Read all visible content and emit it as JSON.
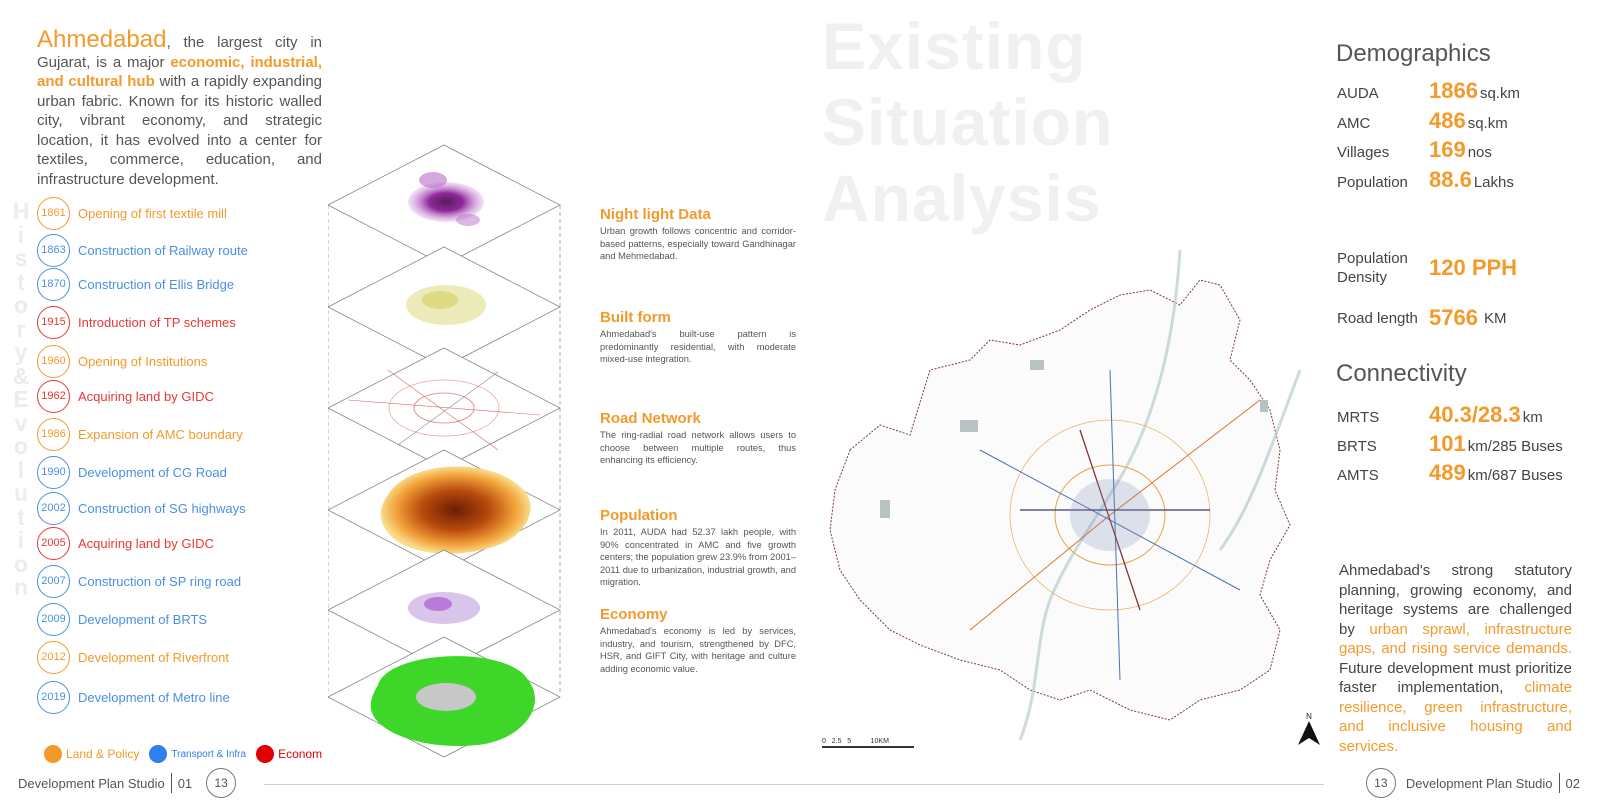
{
  "intro": {
    "city": "Ahmedabad",
    "part1": ", the largest city in Gujarat, is a major ",
    "highlight": "economic, industrial, and cultural hub",
    "part2": " with a rapidly expanding urban fabric. Known for its historic walled city, vibrant economy, and strategic location, it has evolved into a center for textiles, commerce, education, and infrastructure development."
  },
  "side_word": [
    "H",
    "i",
    "s",
    "t",
    "o",
    "r",
    "y",
    "&",
    "E",
    "v",
    "o",
    "l",
    "u",
    "t",
    "i",
    "o",
    "n"
  ],
  "timeline": [
    {
      "year": "1861",
      "text": "Opening of first textile mill",
      "cat": "orange"
    },
    {
      "year": "1863",
      "text": "Construction of Railway route",
      "cat": "blue"
    },
    {
      "year": "1870",
      "text": "Construction of Ellis Bridge",
      "cat": "blue"
    },
    {
      "year": "1915",
      "text": "Introduction of TP schemes",
      "cat": "red"
    },
    {
      "year": "1960",
      "text": "Opening of Institutions",
      "cat": "orange"
    },
    {
      "year": "1962",
      "text": "Acquiring land by GIDC",
      "cat": "red"
    },
    {
      "year": "1986",
      "text": "Expansion of AMC boundary",
      "cat": "orange"
    },
    {
      "year": "1990",
      "text": "Development of CG Road",
      "cat": "blue"
    },
    {
      "year": "2002",
      "text": "Construction of SG highways",
      "cat": "blue"
    },
    {
      "year": "2005",
      "text": "Acquiring land by GIDC",
      "cat": "red"
    },
    {
      "year": "2007",
      "text": "Construction of SP ring road",
      "cat": "blue"
    },
    {
      "year": "2009",
      "text": "Development of BRTS",
      "cat": "blue"
    },
    {
      "year": "2012",
      "text": "Development of Riverfront",
      "cat": "orange"
    },
    {
      "year": "2019",
      "text": "Development of Metro line",
      "cat": "blue"
    }
  ],
  "legend": [
    {
      "label": "Land & Policy",
      "color": "#f39a2b"
    },
    {
      "label": "Transport & Infra",
      "color": "#2f80ed"
    },
    {
      "label": "Econom",
      "color": "#e00000"
    }
  ],
  "colors": {
    "orange": "#f39a2b",
    "blue": "#4a90e2",
    "red": "#e53935"
  },
  "layers": [
    {
      "title": "Night light Data",
      "text": "Urban growth follows concentric and corridor-based patterns, especially toward Gandhinagar and Mehmedabad."
    },
    {
      "title": "Built form",
      "text": "Ahmedabad's built-use pattern is predominantly residential, with moderate mixed-use integration."
    },
    {
      "title": "Road Network",
      "text": "The ring-radial road network allows users to choose between multiple routes, thus enhancing its efficiency."
    },
    {
      "title": "Population",
      "text": "In 2011, AUDA had 52.37 lakh people, with 90% concentrated in AMC and five growth centers; the population grew 23.9% from 2001–2011 due to urbanization, industrial growth, and migration."
    },
    {
      "title": "Economy",
      "text": "Ahmedabad's economy is led by services, industry, and tourism, strengthened by DFC, HSR, and GIFT City, with heritage and culture adding economic value."
    }
  ],
  "big_title": [
    "Existing",
    "Situation",
    "Analysis"
  ],
  "map": {
    "scale_label": "0   2.5   5          10KM",
    "north": "N"
  },
  "demographics": {
    "title": "Demographics",
    "rows": [
      {
        "label": "AUDA",
        "value": "1866",
        "unit": "sq.km"
      },
      {
        "label": "AMC",
        "value": "486",
        "unit": "sq.km"
      },
      {
        "label": "Villages",
        "value": "169",
        "unit": "nos"
      },
      {
        "label": "Population",
        "value": "88.6",
        "unit": "Lakhs"
      }
    ],
    "density": {
      "label": "Population Density",
      "value": "120 PPH",
      "unit": ""
    },
    "road": {
      "label": "Road length",
      "value": "5766",
      "unit": "KM"
    }
  },
  "connectivity": {
    "title": "Connectivity",
    "rows": [
      {
        "label": "MRTS",
        "value": "40.3/28.3",
        "unit": "km"
      },
      {
        "label": "BRTS",
        "value": "101",
        "unit": "km/285 Buses"
      },
      {
        "label": "AMTS",
        "value": "489",
        "unit": "km/687 Buses"
      }
    ]
  },
  "summary": {
    "p1": "Ahmedabad's strong statutory planning, growing economy, and heritage systems are challenged by ",
    "h1": "urban sprawl, infrastructure gaps, and rising service demands.",
    "p2": " Future development must prioritize faster implementation, ",
    "h2": "climate resilience, green infrastructure, and inclusive housing and services."
  },
  "footer": {
    "left_label": "Development Plan Studio",
    "left_num": "01",
    "left_page": "13",
    "right_page": "13",
    "right_label": "Development Plan Studio",
    "right_num": "02"
  }
}
